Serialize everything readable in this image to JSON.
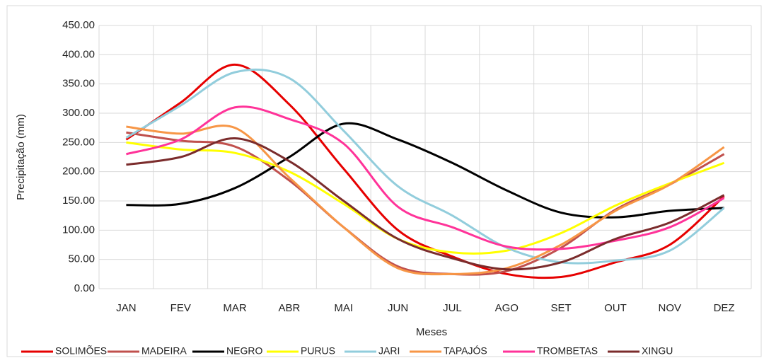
{
  "chart_data": {
    "type": "line",
    "x_label": "Meses",
    "y_label": "Precipitação (mm)",
    "categories": [
      "JAN",
      "FEV",
      "MAR",
      "ABR",
      "MAI",
      "JUN",
      "JUL",
      "AGO",
      "SET",
      "OUT",
      "NOV",
      "DEZ"
    ],
    "ylim": [
      0,
      450
    ],
    "yticks": [
      {
        "value": 0,
        "label": "0.00"
      },
      {
        "value": 50,
        "label": "50.00"
      },
      {
        "value": 100,
        "label": "100.00"
      },
      {
        "value": 150,
        "label": "150.00"
      },
      {
        "value": 200,
        "label": "200.00"
      },
      {
        "value": 250,
        "label": "250.00"
      },
      {
        "value": 300,
        "label": "300.00"
      },
      {
        "value": 350,
        "label": "350.00"
      },
      {
        "value": 400,
        "label": "400.00"
      },
      {
        "value": 450,
        "label": "450.00"
      }
    ],
    "grid": true,
    "legend": "bottom",
    "series": [
      {
        "name": "SOLIMÕES",
        "color": "#e60000",
        "values": [
          255,
          318,
          383,
          315,
          205,
          100,
          55,
          25,
          20,
          45,
          75,
          158
        ]
      },
      {
        "name": "MADEIRA",
        "color": "#c0504d",
        "values": [
          267,
          253,
          243,
          185,
          105,
          38,
          25,
          30,
          70,
          135,
          178,
          230
        ]
      },
      {
        "name": "NEGRO",
        "color": "#000000",
        "values": [
          143,
          145,
          172,
          225,
          282,
          255,
          215,
          168,
          130,
          122,
          133,
          138
        ]
      },
      {
        "name": "PURUS",
        "color": "#ffff00",
        "values": [
          250,
          238,
          232,
          200,
          145,
          85,
          62,
          65,
          95,
          142,
          180,
          215
        ]
      },
      {
        "name": "JARI",
        "color": "#92cddc",
        "values": [
          258,
          313,
          370,
          360,
          270,
          175,
          125,
          70,
          45,
          48,
          65,
          138
        ]
      },
      {
        "name": "TAPAJÓS",
        "color": "#f79646",
        "values": [
          277,
          265,
          275,
          190,
          105,
          35,
          25,
          35,
          75,
          133,
          178,
          242
        ]
      },
      {
        "name": "TROMBETAS",
        "color": "#ff3399",
        "values": [
          230,
          255,
          310,
          290,
          248,
          140,
          105,
          72,
          68,
          82,
          105,
          155
        ]
      },
      {
        "name": "XINGU",
        "color": "#7b2c2c",
        "values": [
          212,
          225,
          257,
          218,
          150,
          85,
          52,
          33,
          45,
          85,
          113,
          160
        ]
      }
    ]
  }
}
